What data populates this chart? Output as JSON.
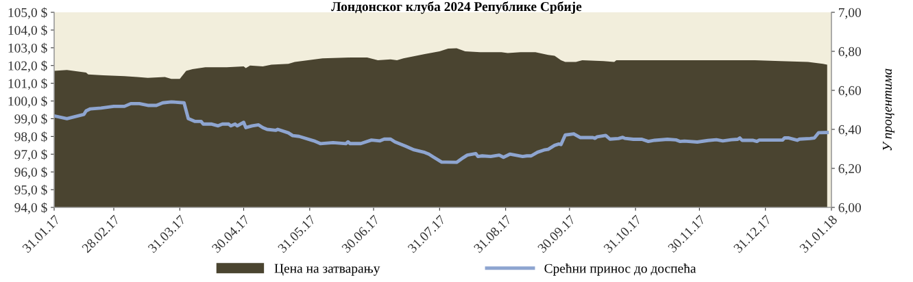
{
  "chart_data": {
    "type": "area",
    "title": "Лондонског клуба 2024 Републике Србије",
    "y2label": "У процентима",
    "legend": "bottom",
    "grid": false,
    "xlim": [
      "2017-01-31",
      "2018-01-31"
    ],
    "xticks": [
      {
        "value": "2017-01-31",
        "label": "31.01.17"
      },
      {
        "value": "2017-02-28",
        "label": "28.02.17"
      },
      {
        "value": "2017-03-31",
        "label": "31.03.17"
      },
      {
        "value": "2017-04-30",
        "label": "30.04.17"
      },
      {
        "value": "2017-05-31",
        "label": "31.05.17"
      },
      {
        "value": "2017-06-30",
        "label": "30.06.17"
      },
      {
        "value": "2017-07-31",
        "label": "31.07.17"
      },
      {
        "value": "2017-08-31",
        "label": "31.08.17"
      },
      {
        "value": "2017-09-30",
        "label": "30.09.17"
      },
      {
        "value": "2017-10-31",
        "label": "31.10.17"
      },
      {
        "value": "2017-11-30",
        "label": "30.11.17"
      },
      {
        "value": "2017-12-31",
        "label": "31.12.17"
      },
      {
        "value": "2018-01-31",
        "label": "31.01.18"
      }
    ],
    "ylim": [
      94,
      105
    ],
    "yticks": [
      {
        "value": 94,
        "label": "94,0 $"
      },
      {
        "value": 95,
        "label": "95,0 $"
      },
      {
        "value": 96,
        "label": "96,0 $"
      },
      {
        "value": 97,
        "label": "97,0 $"
      },
      {
        "value": 98,
        "label": "98,0 $"
      },
      {
        "value": 99,
        "label": "99,0 $"
      },
      {
        "value": 100,
        "label": "100,0 $"
      },
      {
        "value": 101,
        "label": "101,0 $"
      },
      {
        "value": 102,
        "label": "102,0 $"
      },
      {
        "value": 103,
        "label": "103,0 $"
      },
      {
        "value": 104,
        "label": "104,0 $"
      },
      {
        "value": 105,
        "label": "105,0 $"
      }
    ],
    "y2lim": [
      6,
      7
    ],
    "y2ticks": [
      {
        "value": 6,
        "label": "6,00"
      },
      {
        "value": 6.2,
        "label": "6,20"
      },
      {
        "value": 6.4,
        "label": "6,40"
      },
      {
        "value": 6.6,
        "label": "6,60"
      },
      {
        "value": 6.8,
        "label": "6,80"
      },
      {
        "value": 7,
        "label": "7,00"
      }
    ],
    "series": [
      {
        "name": "Цена на затварању",
        "color": "#4a4430",
        "x": [
          "2017-01-31",
          "2017-02-06",
          "2017-02-15",
          "2017-02-16",
          "2017-02-23",
          "2017-03-05",
          "2017-03-11",
          "2017-03-16",
          "2017-03-24",
          "2017-03-27",
          "2017-03-31",
          "2017-04-03",
          "2017-04-06",
          "2017-04-12",
          "2017-04-22",
          "2017-04-30",
          "2017-05-01",
          "2017-05-03",
          "2017-05-09",
          "2017-05-13",
          "2017-05-21",
          "2017-05-24",
          "2017-06-06",
          "2017-06-19",
          "2017-06-27",
          "2017-07-02",
          "2017-07-08",
          "2017-07-11",
          "2017-07-14",
          "2017-07-24",
          "2017-07-31",
          "2017-08-04",
          "2017-08-08",
          "2017-08-12",
          "2017-08-19",
          "2017-08-29",
          "2017-09-01",
          "2017-09-07",
          "2017-09-14",
          "2017-09-20",
          "2017-09-23",
          "2017-09-26",
          "2017-09-28",
          "2017-10-03",
          "2017-10-06",
          "2017-10-16",
          "2017-10-21",
          "2017-10-22",
          "2017-11-04",
          "2017-11-17",
          "2017-11-30",
          "2017-12-13",
          "2017-12-26",
          "2018-01-07",
          "2018-01-20",
          "2018-01-27",
          "2018-01-29"
        ],
        "values": [
          101.7,
          101.75,
          101.6,
          101.5,
          101.45,
          101.4,
          101.35,
          101.3,
          101.35,
          101.25,
          101.25,
          101.7,
          101.8,
          101.9,
          101.9,
          101.95,
          101.85,
          102.0,
          101.95,
          102.05,
          102.1,
          102.2,
          102.4,
          102.45,
          102.45,
          102.3,
          102.35,
          102.3,
          102.4,
          102.65,
          102.8,
          102.95,
          102.97,
          102.8,
          102.75,
          102.75,
          102.7,
          102.75,
          102.75,
          102.6,
          102.55,
          102.3,
          102.2,
          102.2,
          102.3,
          102.25,
          102.2,
          102.3,
          102.3,
          102.3,
          102.3,
          102.3,
          102.3,
          102.25,
          102.2,
          102.1,
          102.05
        ]
      },
      {
        "name": "Срећни принос до доспећа",
        "type": "line",
        "axis": "y2",
        "color": "#8ea5d0",
        "x": [
          "2017-01-31",
          "2017-02-06",
          "2017-02-14",
          "2017-02-15",
          "2017-02-17",
          "2017-02-22",
          "2017-02-28",
          "2017-03-05",
          "2017-03-08",
          "2017-03-12",
          "2017-03-16",
          "2017-03-20",
          "2017-03-23",
          "2017-03-27",
          "2017-04-02",
          "2017-04-04",
          "2017-04-07",
          "2017-04-10",
          "2017-04-11",
          "2017-04-15",
          "2017-04-18",
          "2017-04-20",
          "2017-04-23",
          "2017-04-24",
          "2017-04-26",
          "2017-04-27",
          "2017-04-30",
          "2017-05-01",
          "2017-05-04",
          "2017-05-07",
          "2017-05-09",
          "2017-05-11",
          "2017-05-15",
          "2017-05-16",
          "2017-05-21",
          "2017-05-23",
          "2017-05-26",
          "2017-06-02",
          "2017-06-05",
          "2017-06-11",
          "2017-06-17",
          "2017-06-18",
          "2017-06-19",
          "2017-06-24",
          "2017-06-29",
          "2017-07-03",
          "2017-07-05",
          "2017-07-08",
          "2017-07-10",
          "2017-07-15",
          "2017-07-19",
          "2017-07-24",
          "2017-07-26",
          "2017-07-28",
          "2017-08-01",
          "2017-08-03",
          "2017-08-08",
          "2017-08-11",
          "2017-08-13",
          "2017-08-17",
          "2017-08-18",
          "2017-08-20",
          "2017-08-24",
          "2017-08-28",
          "2017-08-30",
          "2017-09-02",
          "2017-09-08",
          "2017-09-10",
          "2017-09-12",
          "2017-09-15",
          "2017-09-18",
          "2017-09-20",
          "2017-09-23",
          "2017-09-25",
          "2017-09-26",
          "2017-09-28",
          "2017-10-02",
          "2017-10-05",
          "2017-10-11",
          "2017-10-12",
          "2017-10-13",
          "2017-10-17",
          "2017-10-19",
          "2017-10-23",
          "2017-10-25",
          "2017-10-26",
          "2017-10-30",
          "2017-11-03",
          "2017-11-06",
          "2017-11-09",
          "2017-11-15",
          "2017-11-19",
          "2017-11-21",
          "2017-11-23",
          "2017-11-29",
          "2017-12-04",
          "2017-12-08",
          "2017-12-11",
          "2017-12-15",
          "2017-12-18",
          "2017-12-19",
          "2017-12-20",
          "2017-12-25",
          "2017-12-27",
          "2017-12-28",
          "2018-01-08",
          "2018-01-09",
          "2018-01-11",
          "2018-01-15",
          "2018-01-16",
          "2018-01-21",
          "2018-01-23",
          "2018-01-25",
          "2018-01-29"
        ],
        "values": [
          6.469,
          6.455,
          6.477,
          6.495,
          6.505,
          6.509,
          6.518,
          6.518,
          6.532,
          6.532,
          6.523,
          6.523,
          6.536,
          6.541,
          6.536,
          6.455,
          6.441,
          6.441,
          6.427,
          6.427,
          6.418,
          6.427,
          6.427,
          6.418,
          6.427,
          6.418,
          6.436,
          6.409,
          6.418,
          6.423,
          6.409,
          6.4,
          6.395,
          6.4,
          6.382,
          6.368,
          6.364,
          6.341,
          6.327,
          6.332,
          6.327,
          6.336,
          6.327,
          6.327,
          6.345,
          6.341,
          6.35,
          6.35,
          6.336,
          6.314,
          6.295,
          6.282,
          6.273,
          6.259,
          6.232,
          6.232,
          6.231,
          6.254,
          6.268,
          6.276,
          6.261,
          6.264,
          6.261,
          6.268,
          6.257,
          6.273,
          6.261,
          6.264,
          6.264,
          6.283,
          6.294,
          6.298,
          6.318,
          6.325,
          6.322,
          6.371,
          6.377,
          6.358,
          6.358,
          6.354,
          6.362,
          6.369,
          6.35,
          6.353,
          6.359,
          6.354,
          6.349,
          6.349,
          6.338,
          6.344,
          6.349,
          6.346,
          6.338,
          6.34,
          6.335,
          6.343,
          6.347,
          6.341,
          6.347,
          6.349,
          6.356,
          6.344,
          6.344,
          6.338,
          6.345,
          6.345,
          6.356,
          6.356,
          6.344,
          6.35,
          6.353,
          6.356,
          6.383,
          6.384
        ]
      }
    ]
  }
}
